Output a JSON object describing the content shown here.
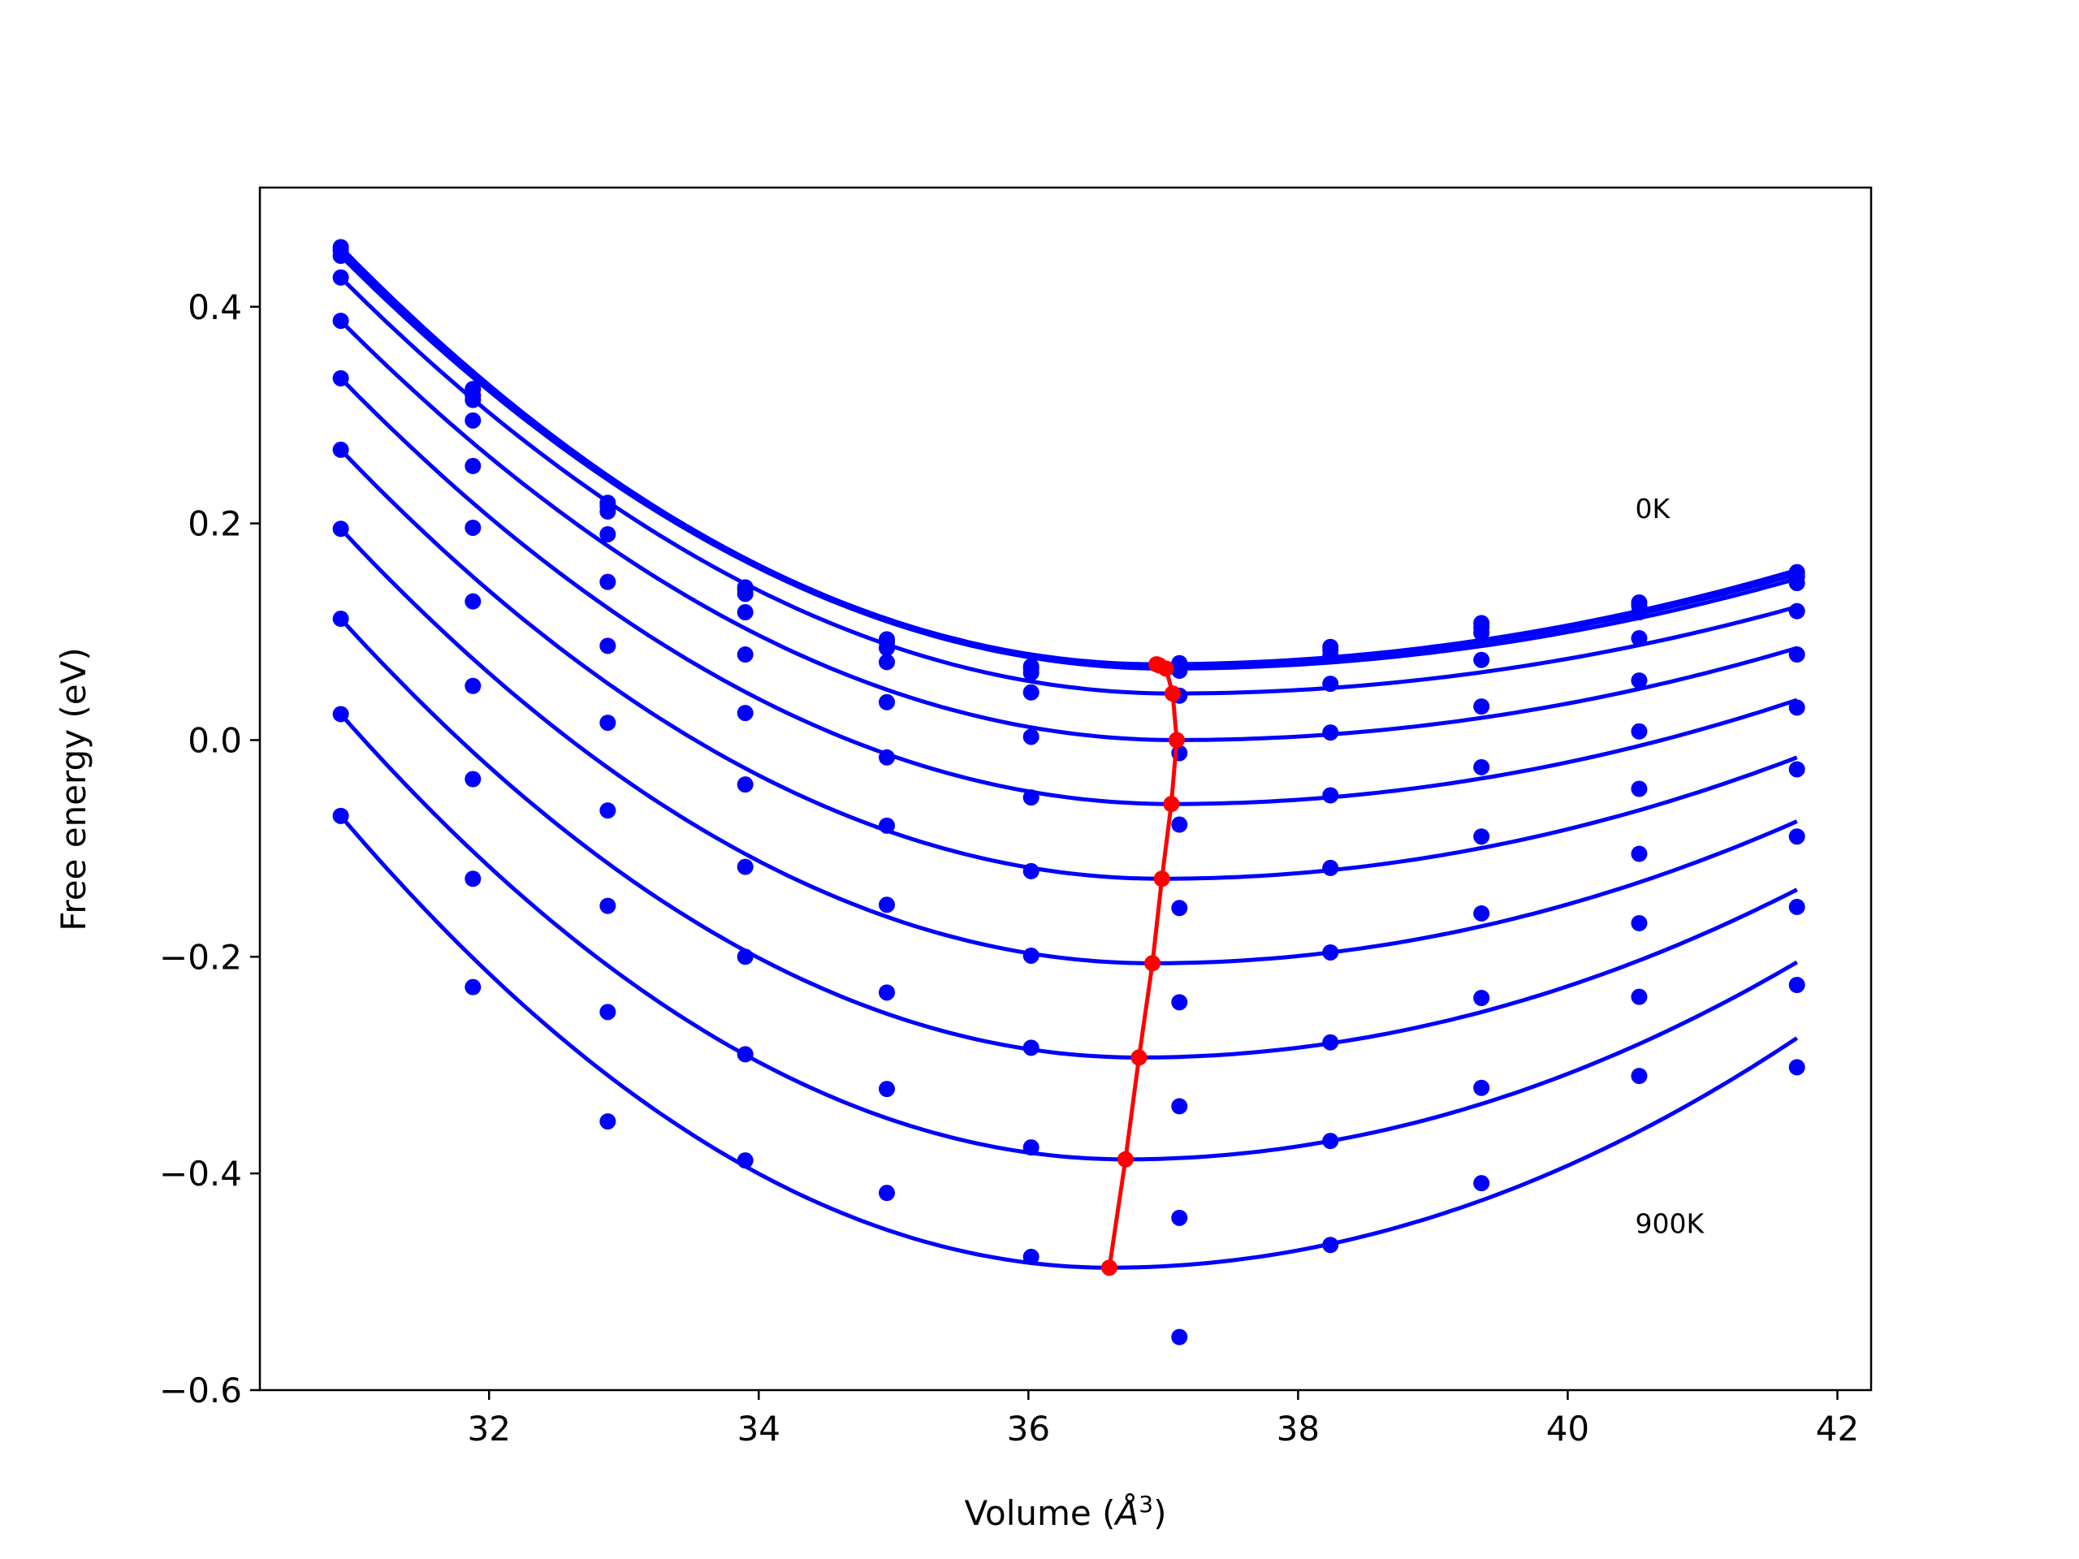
{
  "chart_data": {
    "type": "line",
    "title": "",
    "xlabel": "Volume (Å³)",
    "xlabel_main": "Volume (",
    "xlabel_unit": "Å",
    "xlabel_exp": "3",
    "xlabel_close": ")",
    "ylabel": "Free energy (eV)",
    "xlim": [
      30.3,
      42.25
    ],
    "ylim": [
      -0.6,
      0.51
    ],
    "xticks": [
      32,
      34,
      36,
      38,
      40,
      42
    ],
    "xtick_labels": [
      "32",
      "34",
      "36",
      "38",
      "40",
      "42"
    ],
    "yticks": [
      -0.6,
      -0.4,
      -0.2,
      0.0,
      0.2,
      0.4
    ],
    "ytick_labels": [
      "−0.6",
      "−0.4",
      "−0.2",
      "0.0",
      "0.2",
      "0.4"
    ],
    "grid": false,
    "legend": "none",
    "annotations": [
      {
        "text": "0K",
        "x": 40.5,
        "y": 0.205
      },
      {
        "text": "900K",
        "x": 40.5,
        "y": -0.455
      }
    ],
    "fit_x_range": [
      30.9,
      41.7
    ],
    "volumes": [
      30.9,
      31.88,
      32.88,
      33.9,
      34.95,
      36.02,
      37.12,
      38.24,
      39.36,
      40.53,
      41.7
    ],
    "series": [
      {
        "points": [
          0.455,
          0.324,
          0.219,
          0.141,
          0.093,
          0.068,
          0.071,
          0.086,
          0.108,
          0.127,
          0.155
        ],
        "fit_min_v": 36.95,
        "fit_min_f": 0.07,
        "fit_end_f": 0.157
      },
      {
        "points": [
          0.452,
          0.318,
          0.216,
          0.139,
          0.09,
          0.066,
          0.068,
          0.083,
          0.104,
          0.124,
          0.151
        ],
        "fit_min_v": 36.97,
        "fit_min_f": 0.069,
        "fit_end_f": 0.153
      },
      {
        "points": [
          0.447,
          0.314,
          0.211,
          0.135,
          0.085,
          0.062,
          0.064,
          0.078,
          0.099,
          0.118,
          0.145
        ],
        "fit_min_v": 37.02,
        "fit_min_f": 0.066,
        "fit_end_f": 0.149
      },
      {
        "points": [
          0.427,
          0.295,
          0.19,
          0.118,
          0.072,
          0.044,
          0.041,
          0.052,
          0.074,
          0.094,
          0.119
        ],
        "fit_min_v": 37.07,
        "fit_min_f": 0.043,
        "fit_end_f": 0.123
      },
      {
        "points": [
          0.387,
          0.253,
          0.146,
          0.079,
          0.035,
          0.003,
          -0.012,
          0.007,
          0.031,
          0.055,
          0.079
        ],
        "fit_min_v": 37.1,
        "fit_min_f": 0.0,
        "fit_end_f": 0.085
      },
      {
        "points": [
          0.334,
          0.196,
          0.087,
          0.025,
          -0.016,
          -0.053,
          -0.078,
          -0.051,
          -0.025,
          0.008,
          0.03
        ],
        "fit_min_v": 37.06,
        "fit_min_f": -0.059,
        "fit_end_f": 0.037
      },
      {
        "points": [
          0.268,
          0.128,
          0.016,
          -0.041,
          -0.079,
          -0.121,
          -0.155,
          -0.118,
          -0.089,
          -0.045,
          -0.027
        ],
        "fit_min_v": 36.99,
        "fit_min_f": -0.128,
        "fit_end_f": -0.016
      },
      {
        "points": [
          0.195,
          0.05,
          -0.065,
          -0.117,
          -0.152,
          -0.199,
          -0.242,
          -0.196,
          -0.16,
          -0.105,
          -0.089
        ],
        "fit_min_v": 36.92,
        "fit_min_f": -0.206,
        "fit_end_f": -0.075
      },
      {
        "points": [
          0.112,
          -0.036,
          -0.153,
          -0.2,
          -0.233,
          -0.284,
          -0.338,
          -0.279,
          -0.238,
          -0.169,
          -0.154
        ],
        "fit_min_v": 36.82,
        "fit_min_f": -0.293,
        "fit_end_f": -0.138
      },
      {
        "points": [
          0.024,
          -0.128,
          -0.251,
          -0.29,
          -0.322,
          -0.376,
          -0.441,
          -0.37,
          -0.321,
          -0.237,
          -0.226
        ],
        "fit_min_v": 36.72,
        "fit_min_f": -0.387,
        "fit_end_f": -0.205
      },
      {
        "points": [
          -0.07,
          -0.228,
          -0.352,
          -0.388,
          -0.418,
          -0.477,
          -0.551,
          -0.466,
          -0.409,
          -0.31,
          -0.302
        ],
        "fit_min_v": 36.6,
        "fit_min_f": -0.487,
        "fit_end_f": -0.275
      }
    ],
    "minimum_path": {
      "x": [
        36.95,
        36.97,
        37.02,
        37.07,
        37.1,
        37.06,
        36.99,
        36.92,
        36.82,
        36.72,
        36.6
      ],
      "y": [
        0.07,
        0.069,
        0.066,
        0.043,
        0.0,
        -0.059,
        -0.128,
        -0.206,
        -0.293,
        -0.387,
        -0.487
      ]
    },
    "colors": {
      "curves": "#0000ff",
      "path": "#ff0000",
      "axes": "#000000"
    }
  }
}
